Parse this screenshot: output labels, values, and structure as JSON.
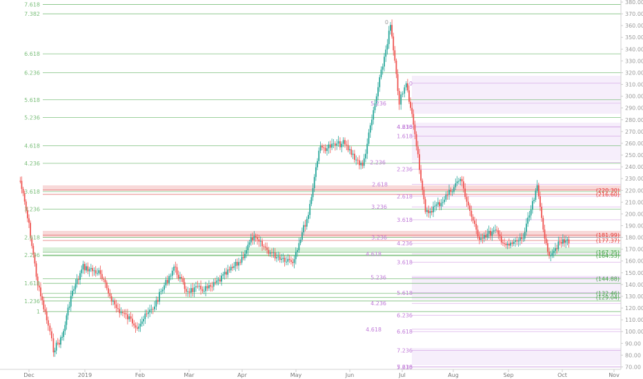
{
  "colors": {
    "up": "#26a69a",
    "down": "#ef5350",
    "fib_green": "#7cbf7c",
    "fib_violet": "#c07ad8",
    "fib_red": "#e57373",
    "zone_red": "#f8d9d9",
    "zone_green": "#d9f0d9",
    "zone_violet": "#f6eefb",
    "grid_text": "#999999"
  },
  "chart_data": {
    "type": "candlestick",
    "x_axis_labels": [
      "Dec",
      "2019",
      "Feb",
      "Mar",
      "Apr",
      "May",
      "Jun",
      "Jul",
      "Aug",
      "Sep",
      "Oct",
      "Nov"
    ],
    "y_axis": {
      "range": [
        65,
        380
      ],
      "ticks": [
        "380.00",
        "370.00",
        "360.00",
        "350.00",
        "340.00",
        "330.00",
        "320.00",
        "310.00",
        "300.00",
        "290.00",
        "280.00",
        "270.00",
        "260.00",
        "250.00",
        "240.00",
        "230.00",
        "220.00",
        "210.00",
        "200.00",
        "190.00",
        "180.00",
        "170.00",
        "160.00",
        "150.00",
        "140.00",
        "130.00",
        "120.00",
        "110.00",
        "100.00",
        "90.00",
        "80.00",
        "70.00"
      ]
    },
    "price_path": [
      {
        "x": "Nov 26 2018",
        "y": 228
      },
      {
        "x": "Dec 1",
        "y": 190
      },
      {
        "x": "Dec 6",
        "y": 140
      },
      {
        "x": "Dec 12",
        "y": 105
      },
      {
        "x": "Dec 15",
        "y": 85
      },
      {
        "x": "Dec 20",
        "y": 95
      },
      {
        "x": "Dec 25",
        "y": 130
      },
      {
        "x": "Jan 1 2019",
        "y": 155
      },
      {
        "x": "Jan 10",
        "y": 150
      },
      {
        "x": "Jan 20",
        "y": 120
      },
      {
        "x": "Feb 1",
        "y": 105
      },
      {
        "x": "Feb 10",
        "y": 120
      },
      {
        "x": "Feb 22",
        "y": 155
      },
      {
        "x": "Mar 1",
        "y": 135
      },
      {
        "x": "Mar 15",
        "y": 137
      },
      {
        "x": "Apr 1",
        "y": 160
      },
      {
        "x": "Apr 8",
        "y": 180
      },
      {
        "x": "Apr 20",
        "y": 165
      },
      {
        "x": "May 1",
        "y": 160
      },
      {
        "x": "May 10",
        "y": 200
      },
      {
        "x": "May 16",
        "y": 255
      },
      {
        "x": "May 30",
        "y": 260
      },
      {
        "x": "Jun 10",
        "y": 240
      },
      {
        "x": "Jun 26",
        "y": 360
      },
      {
        "x": "Jul 1",
        "y": 295
      },
      {
        "x": "Jul 5",
        "y": 310
      },
      {
        "x": "Jul 10",
        "y": 270
      },
      {
        "x": "Jul 16",
        "y": 200
      },
      {
        "x": "Jul 25",
        "y": 210
      },
      {
        "x": "Aug 5",
        "y": 230
      },
      {
        "x": "Aug 15",
        "y": 180
      },
      {
        "x": "Aug 25",
        "y": 185
      },
      {
        "x": "Sep 1",
        "y": 172
      },
      {
        "x": "Sep 10",
        "y": 180
      },
      {
        "x": "Sep 18",
        "y": 222
      },
      {
        "x": "Sep 24",
        "y": 165
      },
      {
        "x": "Oct 1",
        "y": 175
      },
      {
        "x": "Oct 7",
        "y": 178
      }
    ],
    "fib_left": {
      "labels": [
        {
          "text": "7.618",
          "y": 378
        },
        {
          "text": "7.382",
          "y": 370
        },
        {
          "text": "6.618",
          "y": 336
        },
        {
          "text": "6.236",
          "y": 320
        },
        {
          "text": "5.618",
          "y": 297
        },
        {
          "text": "5.236",
          "y": 282
        },
        {
          "text": "4.618",
          "y": 258
        },
        {
          "text": "4.236",
          "y": 243
        },
        {
          "text": "3.618",
          "y": 219
        },
        {
          "text": "3.236",
          "y": 204
        },
        {
          "text": "2.618",
          "y": 180
        },
        {
          "text": "2.236",
          "y": 165
        },
        {
          "text": "1.618",
          "y": 141
        },
        {
          "text": "1.236",
          "y": 126
        },
        {
          "text": "1",
          "y": 117
        },
        {
          "text": "0",
          "y": 363
        }
      ]
    },
    "fib_right": {
      "labels": [
        {
          "text": "0",
          "y": 311
        },
        {
          "text": "5.236",
          "y": 294
        },
        {
          "text": "4.618",
          "y": 274
        },
        {
          "text": "1.618",
          "y": 266
        },
        {
          "text": "4.236",
          "y": 274
        },
        {
          "text": "2.236",
          "y": 244
        },
        {
          "text": "2.236",
          "y": 238
        },
        {
          "text": "2.618",
          "y": 225
        },
        {
          "text": "2.618",
          "y": 215
        },
        {
          "text": "3.236",
          "y": 206
        },
        {
          "text": "3.618",
          "y": 195
        },
        {
          "text": "3.236",
          "y": 180
        },
        {
          "text": "4.236",
          "y": 175
        },
        {
          "text": "4.618",
          "y": 166
        },
        {
          "text": "3.618",
          "y": 159
        },
        {
          "text": "5.236",
          "y": 146
        },
        {
          "text": "5.618",
          "y": 133
        },
        {
          "text": "4.236",
          "y": 124
        },
        {
          "text": "6.236",
          "y": 114
        },
        {
          "text": "4.618",
          "y": 102
        },
        {
          "text": "6.618",
          "y": 100
        },
        {
          "text": "7.236",
          "y": 84
        },
        {
          "text": "5.236",
          "y": 70
        },
        {
          "text": "7.618",
          "y": 70
        }
      ]
    },
    "price_tags": [
      {
        "text": "(220.30)",
        "y": 220.3,
        "color": "red"
      },
      {
        "text": "(216.60)",
        "y": 216.6,
        "color": "red"
      },
      {
        "text": "(181.99)",
        "y": 182.0,
        "color": "red"
      },
      {
        "text": "(177.37)",
        "y": 177.4,
        "color": "red"
      },
      {
        "text": "(167.35)",
        "y": 167.4,
        "color": "green"
      },
      {
        "text": "(164.53)",
        "y": 164.5,
        "color": "green"
      },
      {
        "text": "(144.88)",
        "y": 144.9,
        "color": "green"
      },
      {
        "text": "(132.46)",
        "y": 132.5,
        "color": "green"
      },
      {
        "text": "(129.04)",
        "y": 129.0,
        "color": "green"
      }
    ]
  }
}
